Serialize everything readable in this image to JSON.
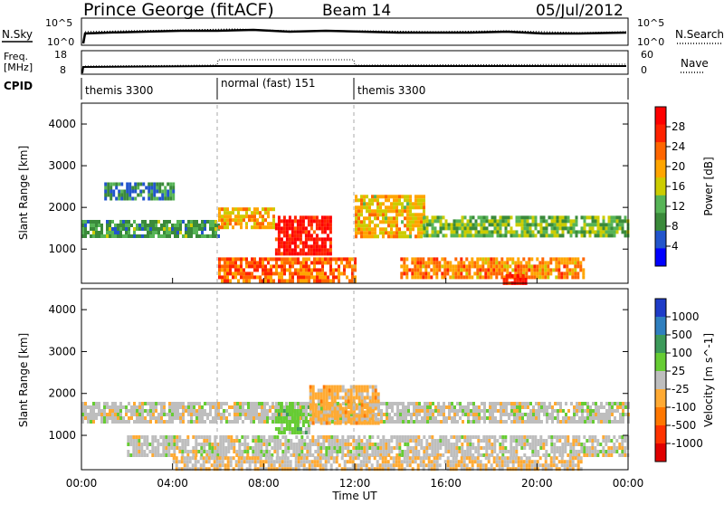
{
  "header": {
    "station": "Prince George (fitACF)",
    "beam": "Beam 14",
    "date": "05/Jul/2012"
  },
  "status_panels": {
    "nsky_label": "N.Sky",
    "nsearch_label": "N.Search",
    "nsky_ticks": [
      "10^5",
      "10^0"
    ],
    "nsearch_ticks": [
      "10^5",
      "10^0"
    ],
    "freq_label_line1": "Freq.",
    "freq_label_line2": "[MHz]",
    "freq_ticks": [
      "18",
      "8"
    ],
    "nave_label": "Nave",
    "nave_ticks": [
      "60",
      "0"
    ],
    "cpid_label": "CPID",
    "cpid_segments": [
      {
        "label": "themis 3300",
        "start_h": 0,
        "end_h": 6
      },
      {
        "label": "normal (fast) 151",
        "start_h": 6,
        "end_h": 12
      },
      {
        "label": "themis 3300",
        "start_h": 12,
        "end_h": 24
      }
    ]
  },
  "axes": {
    "xlabel": "Time UT",
    "xticks": [
      "00:00",
      "04:00",
      "08:00",
      "12:00",
      "16:00",
      "20:00",
      "00:00"
    ],
    "xtick_hours": [
      0,
      4,
      8,
      12,
      16,
      20,
      24
    ],
    "ylabel": "Slant Range [km]",
    "yticks": [
      "4000",
      "3000",
      "2000",
      "1000"
    ],
    "ytick_values": [
      4000,
      3000,
      2000,
      1000
    ]
  },
  "power_colorbar": {
    "label": "Power [dB]",
    "ticks": [
      "28",
      "24",
      "20",
      "16",
      "12",
      "8",
      "4"
    ],
    "colors": [
      "#0000ff",
      "#2255cc",
      "#3a8a3a",
      "#56b456",
      "#cccc00",
      "#ffa500",
      "#ff6600",
      "#ff2200",
      "#ff0000"
    ]
  },
  "velocity_colorbar": {
    "label": "Velocity [m s^-1]",
    "ticks": [
      "1000",
      "500",
      "100",
      "25",
      "-25",
      "-100",
      "-500",
      "-1000"
    ],
    "colors": [
      "#1e3cc8",
      "#2f7fbf",
      "#3c9a5a",
      "#66cc33",
      "#bebebe",
      "#ffaa33",
      "#ff7700",
      "#ff3300",
      "#e00000"
    ]
  },
  "chart_data": [
    {
      "type": "heatmap",
      "title": "Power",
      "xlabel": "Time UT",
      "ylabel": "Slant Range [km]",
      "x_range_hours": [
        0,
        24
      ],
      "ylim": [
        180,
        4500
      ],
      "colorbar_label": "Power [dB]",
      "colorbar_range": [
        0,
        30
      ],
      "echo_regions": [
        {
          "t_start": 0.0,
          "t_end": 6.0,
          "range_start": 1300,
          "range_end": 1700,
          "value": 10
        },
        {
          "t_start": 1.0,
          "t_end": 4.0,
          "range_start": 2200,
          "range_end": 2600,
          "value": 8
        },
        {
          "t_start": 6.0,
          "t_end": 8.5,
          "range_start": 1500,
          "range_end": 2000,
          "value": 18
        },
        {
          "t_start": 8.5,
          "t_end": 11.0,
          "range_start": 900,
          "range_end": 1800,
          "value": 27
        },
        {
          "t_start": 6.0,
          "t_end": 12.0,
          "range_start": 200,
          "range_end": 800,
          "value": 22
        },
        {
          "t_start": 12.0,
          "t_end": 15.0,
          "range_start": 1300,
          "range_end": 2300,
          "value": 17
        },
        {
          "t_start": 15.0,
          "t_end": 24.0,
          "range_start": 1300,
          "range_end": 1800,
          "value": 12
        },
        {
          "t_start": 14.0,
          "t_end": 22.0,
          "range_start": 300,
          "range_end": 800,
          "value": 20
        },
        {
          "t_start": 18.5,
          "t_end": 19.5,
          "range_start": 200,
          "range_end": 400,
          "value": 27
        }
      ]
    },
    {
      "type": "heatmap",
      "title": "Velocity",
      "xlabel": "Time UT",
      "ylabel": "Slant Range [km]",
      "x_range_hours": [
        0,
        24
      ],
      "ylim": [
        180,
        4500
      ],
      "colorbar_label": "Velocity [m s^-1]",
      "colorbar_range": [
        -1000,
        1000
      ],
      "echo_regions": [
        {
          "t_start": 0.0,
          "t_end": 24.0,
          "range_start": 1300,
          "range_end": 1800,
          "value": 0
        },
        {
          "t_start": 8.5,
          "t_end": 10.0,
          "range_start": 1100,
          "range_end": 1800,
          "value": 200
        },
        {
          "t_start": 10.0,
          "t_end": 13.0,
          "range_start": 1300,
          "range_end": 2200,
          "value": -200
        },
        {
          "t_start": 2.0,
          "t_end": 24.0,
          "range_start": 500,
          "range_end": 1000,
          "value": 0
        },
        {
          "t_start": 4.0,
          "t_end": 22.0,
          "range_start": 200,
          "range_end": 500,
          "value": -100
        }
      ]
    }
  ]
}
